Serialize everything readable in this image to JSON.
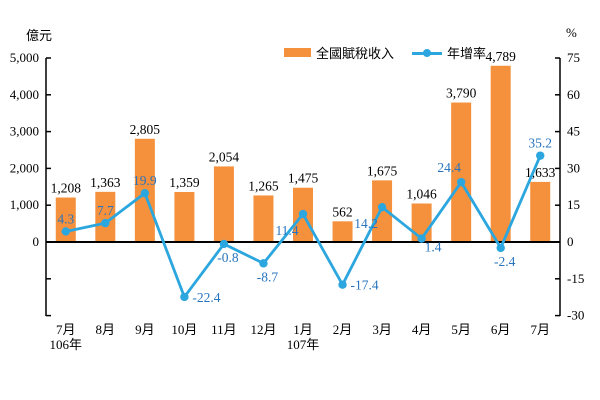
{
  "units": {
    "left": "億元",
    "right": "%"
  },
  "legend": {
    "bar_label": "全國賦稅收入",
    "line_label": "年增率"
  },
  "colors": {
    "bar": "#F5913C",
    "line": "#2BA6DE",
    "line_label": "#2874BE",
    "bar_label": "#000000",
    "axis": "#000000",
    "text": "#000000"
  },
  "chart_data": {
    "type": "bar+line combo",
    "title": "",
    "categories": [
      "7月",
      "8月",
      "9月",
      "10月",
      "11月",
      "12月",
      "1月",
      "2月",
      "3月",
      "4月",
      "5月",
      "6月",
      "7月"
    ],
    "category_sublabels": {
      "0": "106年",
      "6": "107年"
    },
    "series": [
      {
        "name": "全國賦稅收入",
        "type": "bar",
        "axis": "left",
        "values": [
          1208,
          1363,
          2805,
          1359,
          2054,
          1265,
          1475,
          562,
          1675,
          1046,
          3790,
          4789,
          1633
        ]
      },
      {
        "name": "年增率",
        "type": "line",
        "axis": "right",
        "values": [
          4.3,
          7.7,
          19.9,
          -22.4,
          -0.8,
          -8.7,
          11.4,
          -17.4,
          14.2,
          1.4,
          24.4,
          -2.4,
          35.2
        ],
        "label_pos": [
          "above",
          "above",
          "above",
          "right",
          "below",
          "below",
          "below-left",
          "right",
          "below-left",
          "below-right",
          "above-left",
          "below",
          "above"
        ]
      }
    ],
    "left_axis": {
      "label": "億元",
      "max": 5000,
      "min": -2000,
      "tick_step": 1000,
      "labeled_ticks": [
        5000,
        4000,
        3000,
        2000,
        1000,
        0
      ]
    },
    "right_axis": {
      "label": "%",
      "max": 75,
      "min": -30,
      "tick_step": 15,
      "labeled_ticks": [
        75,
        60,
        45,
        30,
        15,
        0,
        -15,
        -30
      ]
    },
    "grid": false,
    "legend_position": "top"
  }
}
